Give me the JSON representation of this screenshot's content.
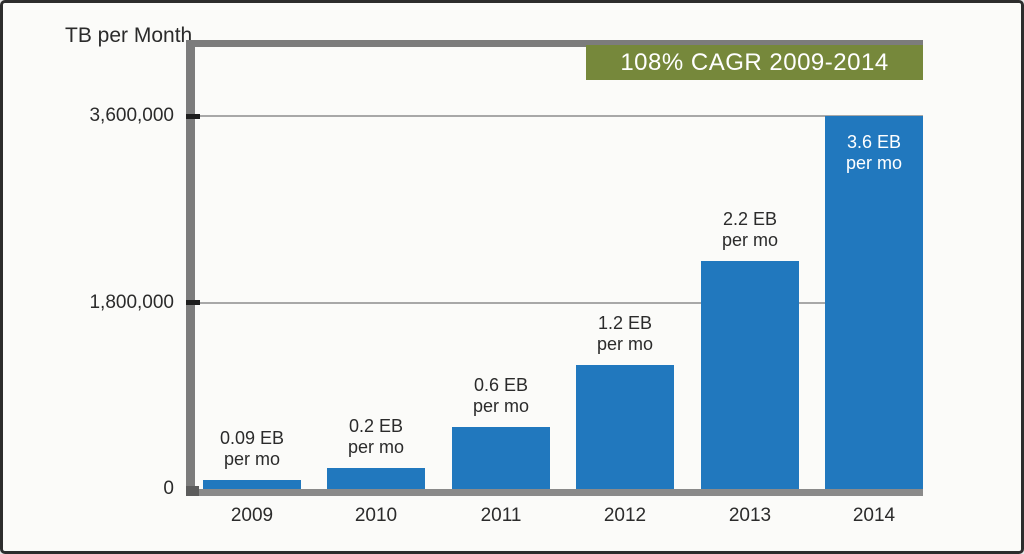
{
  "axis_title": {
    "label": "TB per Month"
  },
  "banner": {
    "label": "108% CAGR 2009-2014",
    "background_color": "#76883B",
    "text_color": "#FFFFFF"
  },
  "chart_data": {
    "type": "bar",
    "title": "",
    "ylabel": "TB per Month",
    "annotation_banner": "108% CAGR 2009-2014",
    "categories": [
      "2009",
      "2010",
      "2011",
      "2012",
      "2013",
      "2014"
    ],
    "values": [
      90000,
      200000,
      600000,
      1200000,
      2200000,
      3600000
    ],
    "bar_labels": [
      {
        "line1": "0.09 EB",
        "line2": "per mo",
        "placement": "above"
      },
      {
        "line1": "0.2 EB",
        "line2": "per mo",
        "placement": "above"
      },
      {
        "line1": "0.6 EB",
        "line2": "per mo",
        "placement": "above"
      },
      {
        "line1": "1.2 EB",
        "line2": "per mo",
        "placement": "above"
      },
      {
        "line1": "2.2 EB",
        "line2": "per mo",
        "placement": "above"
      },
      {
        "line1": "3.6 EB",
        "line2": "per mo",
        "placement": "inside"
      }
    ],
    "yticks": [
      {
        "value": 0,
        "label": "0"
      },
      {
        "value": 1800000,
        "label": "1,800,000"
      },
      {
        "value": 3600000,
        "label": "3,600,000"
      }
    ],
    "ylim": [
      0,
      3600000
    ],
    "grid": "horizontal",
    "legend": "none",
    "bar_color": "#2178BE",
    "axis_color": "#7C7C7C",
    "gridline_color": "#A8A8A8"
  }
}
